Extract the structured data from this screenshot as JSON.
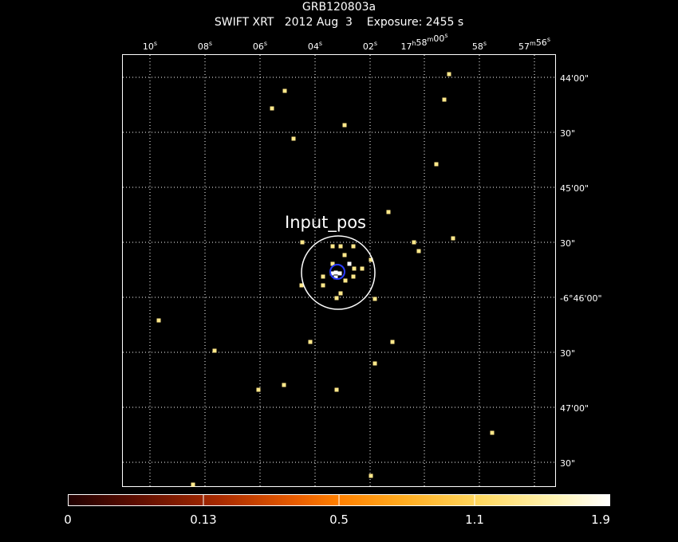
{
  "header": {
    "source_name": "GRB120803a",
    "instrument": "SWIFT XRT",
    "date": "2012 Aug  3",
    "exposure": "Exposure: 2455 s"
  },
  "axes": {
    "ra_labels": [
      "10s",
      "08s",
      "06s",
      "04s",
      "02s",
      "17h58m00s",
      "58s",
      "57m56s"
    ],
    "dec_labels": [
      "44'00\"",
      "30\"",
      "45'00\"",
      "30\"",
      "-6°46'00\"",
      "30\"",
      "47'00\"",
      "30\""
    ]
  },
  "annotation": {
    "label": "Input_pos"
  },
  "colorbar": {
    "labels": [
      "0",
      "0.13",
      "0.5",
      "1.1",
      "1.9"
    ]
  },
  "colors": {
    "photon": "#ffe88a",
    "photon_bright": "#ffffff",
    "input_circle": "#ffffff",
    "source_circle": "#2a3cff",
    "grid": "#ffffff"
  }
}
